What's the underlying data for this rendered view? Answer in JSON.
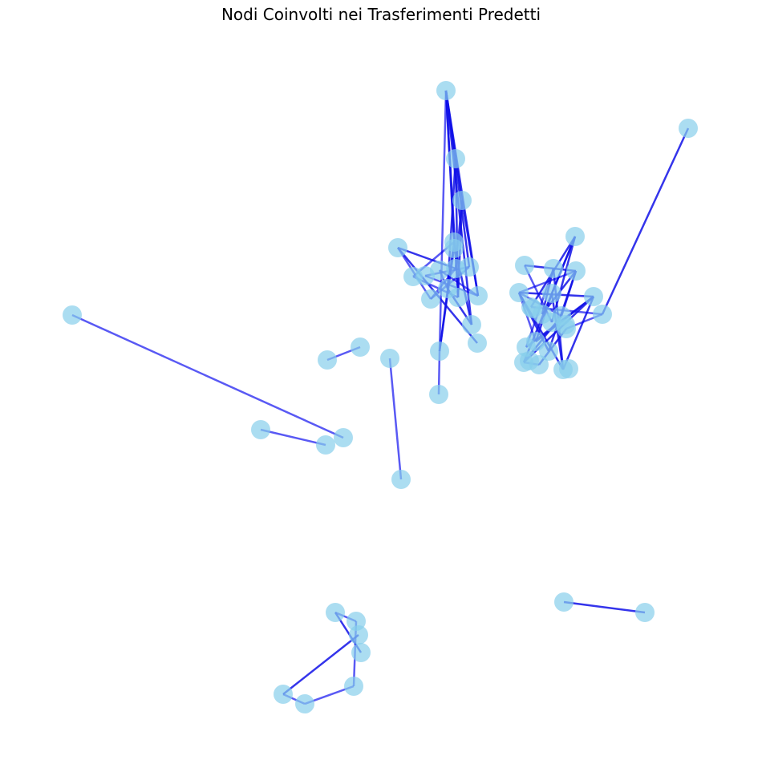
{
  "title": "Nodi Coinvolti nei Trasferimenti Predetti",
  "colors": {
    "node_fill": "#87CEEB",
    "node_alpha": 0.7,
    "edge": "#0000EE",
    "edge_strong": "#1010E8",
    "background": "#ffffff"
  },
  "graph": {
    "node_count": 60,
    "edge_count": 71
  }
}
